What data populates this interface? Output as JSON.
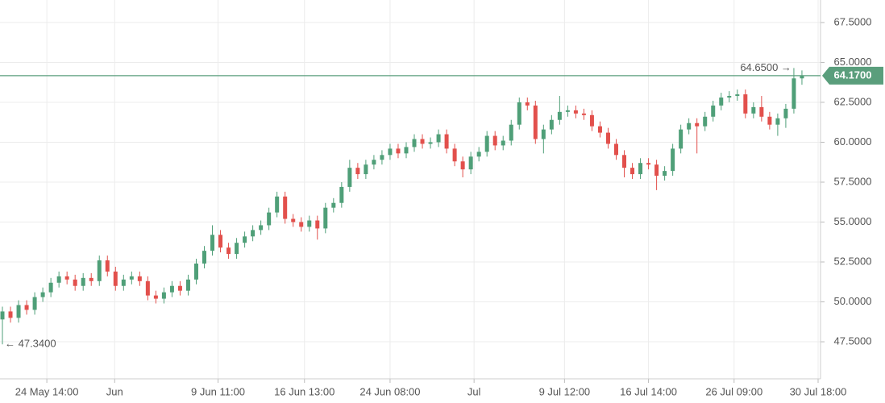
{
  "chart_data": {
    "type": "candlestick",
    "up_color": "#4f9f78",
    "down_color": "#e2504c",
    "grid": true,
    "open": [
      48.9,
      49.4,
      49.0,
      49.8,
      49.5,
      50.3,
      50.6,
      51.2,
      51.6,
      51.4,
      51.0,
      51.5,
      51.3,
      52.6,
      51.9,
      51.0,
      51.4,
      51.6,
      51.3,
      50.4,
      50.2,
      50.6,
      51.0,
      50.7,
      51.4,
      52.4,
      53.2,
      54.2,
      53.4,
      53.0,
      53.7,
      54.1,
      54.5,
      54.8,
      55.6,
      56.6,
      55.2,
      55.0,
      54.7,
      55.1,
      54.6,
      55.9,
      56.2,
      57.2,
      58.4,
      58.0,
      58.6,
      58.9,
      59.2,
      59.6,
      59.3,
      59.7,
      60.2,
      59.9,
      60.0,
      60.5,
      59.6,
      58.8,
      58.3,
      59.1,
      59.4,
      60.4,
      59.8,
      60.1,
      61.1,
      62.5,
      62.3,
      60.2,
      60.8,
      61.4,
      61.9,
      62.0,
      61.8,
      61.7,
      61.0,
      60.6,
      59.9,
      59.2,
      58.4,
      58.0,
      58.7,
      58.6,
      57.9,
      58.2,
      59.6,
      60.8,
      61.2,
      61.0,
      61.6,
      62.3,
      62.8,
      62.9,
      63.0,
      61.8,
      62.2,
      61.6,
      61.1,
      61.5,
      62.1,
      64.0
    ],
    "high": [
      49.7,
      49.7,
      50.1,
      50.1,
      50.6,
      50.9,
      51.5,
      51.9,
      51.9,
      51.7,
      51.8,
      51.8,
      52.9,
      52.9,
      52.2,
      51.7,
      51.9,
      51.9,
      51.6,
      50.7,
      50.9,
      51.3,
      51.3,
      51.7,
      52.7,
      53.5,
      54.8,
      54.5,
      53.7,
      54.0,
      54.4,
      54.8,
      55.1,
      55.9,
      56.9,
      56.9,
      55.5,
      55.3,
      55.4,
      55.4,
      56.2,
      56.5,
      57.5,
      58.9,
      58.7,
      58.9,
      59.2,
      59.5,
      59.9,
      59.9,
      60.0,
      60.5,
      60.5,
      60.3,
      60.8,
      60.8,
      59.9,
      59.1,
      59.4,
      59.7,
      60.7,
      60.7,
      60.4,
      61.4,
      62.8,
      62.8,
      62.6,
      61.1,
      61.7,
      62.9,
      62.3,
      62.3,
      62.1,
      62.0,
      61.3,
      60.9,
      60.2,
      59.5,
      58.7,
      59.0,
      59.0,
      58.9,
      58.5,
      59.9,
      61.1,
      61.5,
      61.5,
      61.9,
      62.6,
      63.1,
      63.2,
      63.3,
      63.3,
      62.5,
      62.9,
      61.9,
      61.8,
      62.4,
      64.65,
      64.5
    ],
    "low": [
      47.34,
      48.7,
      48.7,
      49.2,
      49.2,
      50.0,
      50.3,
      50.9,
      51.1,
      50.7,
      50.7,
      51.0,
      51.0,
      51.6,
      50.7,
      50.7,
      51.1,
      51.0,
      50.1,
      49.9,
      49.9,
      50.3,
      50.4,
      50.4,
      51.1,
      52.1,
      52.9,
      53.1,
      52.7,
      52.7,
      53.4,
      53.8,
      54.2,
      54.5,
      55.3,
      54.9,
      54.7,
      54.4,
      54.4,
      53.9,
      54.3,
      55.6,
      55.9,
      56.9,
      57.7,
      57.7,
      58.3,
      58.6,
      58.9,
      59.0,
      59.0,
      59.4,
      59.6,
      59.6,
      59.7,
      59.3,
      58.5,
      57.8,
      58.0,
      58.8,
      59.1,
      59.5,
      59.5,
      59.8,
      60.8,
      62.0,
      59.9,
      59.3,
      60.5,
      61.1,
      61.6,
      61.5,
      61.4,
      60.7,
      60.3,
      59.6,
      58.9,
      57.8,
      57.7,
      57.7,
      58.3,
      57.0,
      57.6,
      57.9,
      59.3,
      60.5,
      59.3,
      60.7,
      61.3,
      62.0,
      62.5,
      62.6,
      61.5,
      61.5,
      61.3,
      60.8,
      60.4,
      60.9,
      61.8,
      63.6
    ],
    "close": [
      49.4,
      49.0,
      49.8,
      49.5,
      50.3,
      50.6,
      51.2,
      51.6,
      51.4,
      51.0,
      51.5,
      51.3,
      52.6,
      51.9,
      51.0,
      51.4,
      51.6,
      51.3,
      50.4,
      50.2,
      50.6,
      51.0,
      50.7,
      51.4,
      52.4,
      53.2,
      54.2,
      53.4,
      53.0,
      53.7,
      54.1,
      54.5,
      54.8,
      55.6,
      56.6,
      55.2,
      55.0,
      54.7,
      55.1,
      54.6,
      55.9,
      56.2,
      57.2,
      58.4,
      58.0,
      58.6,
      58.9,
      59.2,
      59.6,
      59.3,
      59.7,
      60.2,
      59.9,
      60.0,
      60.5,
      59.6,
      58.8,
      58.3,
      59.1,
      59.4,
      60.4,
      59.8,
      60.1,
      61.1,
      62.5,
      62.3,
      60.2,
      60.8,
      61.4,
      61.9,
      62.0,
      61.8,
      61.7,
      61.0,
      60.6,
      59.9,
      59.2,
      58.4,
      58.0,
      58.7,
      58.6,
      57.9,
      58.2,
      59.6,
      60.8,
      61.2,
      61.0,
      61.6,
      62.3,
      62.8,
      62.9,
      63.0,
      61.8,
      62.2,
      61.6,
      61.1,
      61.5,
      62.1,
      64.0,
      64.17
    ],
    "xlim": [
      -0.3,
      101.3
    ],
    "xticks": [
      {
        "value": 5.5,
        "label": "24 May 14:00"
      },
      {
        "value": 13.9,
        "label": "Jun"
      },
      {
        "value": 26.7,
        "label": "9 Jun 11:00"
      },
      {
        "value": 37.4,
        "label": "16 Jun 13:00"
      },
      {
        "value": 48,
        "label": "24 Jun 08:00"
      },
      {
        "value": 58.4,
        "label": "Jul"
      },
      {
        "value": 69.6,
        "label": "9 Jul 12:00"
      },
      {
        "value": 80,
        "label": "16 Jul 14:00"
      },
      {
        "value": 90.6,
        "label": "26 Jul 09:00"
      },
      {
        "value": 101,
        "label": "30 Jul 18:00"
      }
    ],
    "ylim": [
      45.18,
      68.91
    ],
    "yticks": [
      {
        "value": 47.5,
        "label": "47.5000"
      },
      {
        "value": 50,
        "label": "50.0000"
      },
      {
        "value": 52.5,
        "label": "52.5000"
      },
      {
        "value": 55,
        "label": "55.0000"
      },
      {
        "value": 57.5,
        "label": "57.5000"
      },
      {
        "value": 60,
        "label": "60.0000"
      },
      {
        "value": 62.5,
        "label": "62.5000"
      },
      {
        "value": 65,
        "label": "65.0000"
      },
      {
        "value": 67.5,
        "label": "67.5000"
      }
    ],
    "last_price": {
      "value": 64.17,
      "label": "64.1700",
      "color": "#5a9e7c"
    },
    "high_annotation": {
      "value": 64.65,
      "label": "64.6500 →"
    },
    "low_annotation": {
      "value": 47.34,
      "label": "← 47.3400"
    }
  }
}
